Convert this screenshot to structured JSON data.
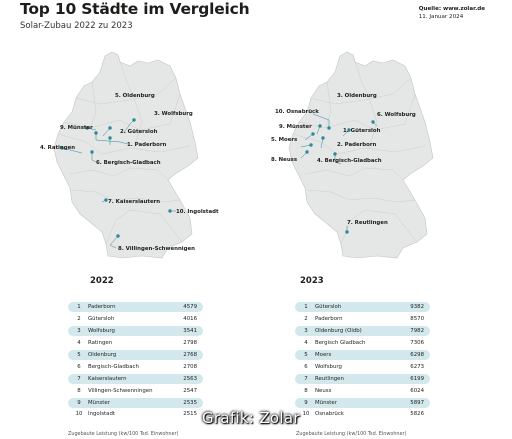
{
  "header": {
    "title": "Top 10 Städte im Vergleich",
    "subtitle": "Solar-Zubau 2022 zu 2023",
    "source_line1": "Quelle: www.zolar.de",
    "source_line2": "11. Januar 2024"
  },
  "colors": {
    "map_fill": "#e5e6e6",
    "map_line": "#c4c6c6",
    "marker": "#2d8a9a",
    "row_shade": "#d2e8ec"
  },
  "left_map": {
    "labels": [
      "5. Oldenburg",
      "3. Wolfsburg",
      "9. Münster",
      "2. Gütersloh",
      "1. Paderborn",
      "4. Ratingen",
      "6. Bergisch-Gladbach",
      "7. Kaiserslautern",
      "10. Ingolstadt",
      "8. Villingen-Schwennigen"
    ]
  },
  "right_map": {
    "labels": [
      "3. Oldenburg",
      "10. Osnabrück",
      "6. Wolfsburg",
      "9. Münster",
      "1. Gütersloh",
      "5. Moers",
      "2. Paderborn",
      "8. Neuss",
      "4. Bergisch-Gladbach",
      "7. Reutlingen"
    ]
  },
  "table_2022": {
    "year": "2022",
    "footer": "Zugebaute Leistung (kw/100 Tsd. Einwohner)",
    "rows": [
      {
        "rank": "1",
        "city": "Paderborn",
        "value": "4579"
      },
      {
        "rank": "2",
        "city": "Gütersloh",
        "value": "4016"
      },
      {
        "rank": "3",
        "city": "Wolfsburg",
        "value": "3541"
      },
      {
        "rank": "4",
        "city": "Ratingen",
        "value": "2798"
      },
      {
        "rank": "5",
        "city": "Oldenburg",
        "value": "2768"
      },
      {
        "rank": "6",
        "city": "Bergisch-Gladbach",
        "value": "2708"
      },
      {
        "rank": "7",
        "city": "Kaiserslautern",
        "value": "2563"
      },
      {
        "rank": "8",
        "city": "Villingen-Schwenningen",
        "value": "2547"
      },
      {
        "rank": "9",
        "city": "Münster",
        "value": "2535"
      },
      {
        "rank": "10",
        "city": "Ingolstadt",
        "value": "2515"
      }
    ]
  },
  "table_2023": {
    "year": "2023",
    "footer": "Zugebaute Leistung (kw/100 Tsd. Einwohner)",
    "rows": [
      {
        "rank": "1",
        "city": "Gütersloh",
        "value": "9382"
      },
      {
        "rank": "2",
        "city": "Paderborn",
        "value": "8570"
      },
      {
        "rank": "3",
        "city": "Oldenburg (Oldb)",
        "value": "7982"
      },
      {
        "rank": "4",
        "city": "Bergisch Gladbach",
        "value": "7306"
      },
      {
        "rank": "5",
        "city": "Moers",
        "value": "6298"
      },
      {
        "rank": "6",
        "city": "Wolfsburg",
        "value": "6273"
      },
      {
        "rank": "7",
        "city": "Reutlingen",
        "value": "6199"
      },
      {
        "rank": "8",
        "city": "Neuss",
        "value": "6024"
      },
      {
        "rank": "9",
        "city": "Münster",
        "value": "5897"
      },
      {
        "rank": "10",
        "city": "Osnabrück",
        "value": "5826"
      }
    ]
  },
  "watermark": {
    "text": "Grafik: Zolar"
  }
}
